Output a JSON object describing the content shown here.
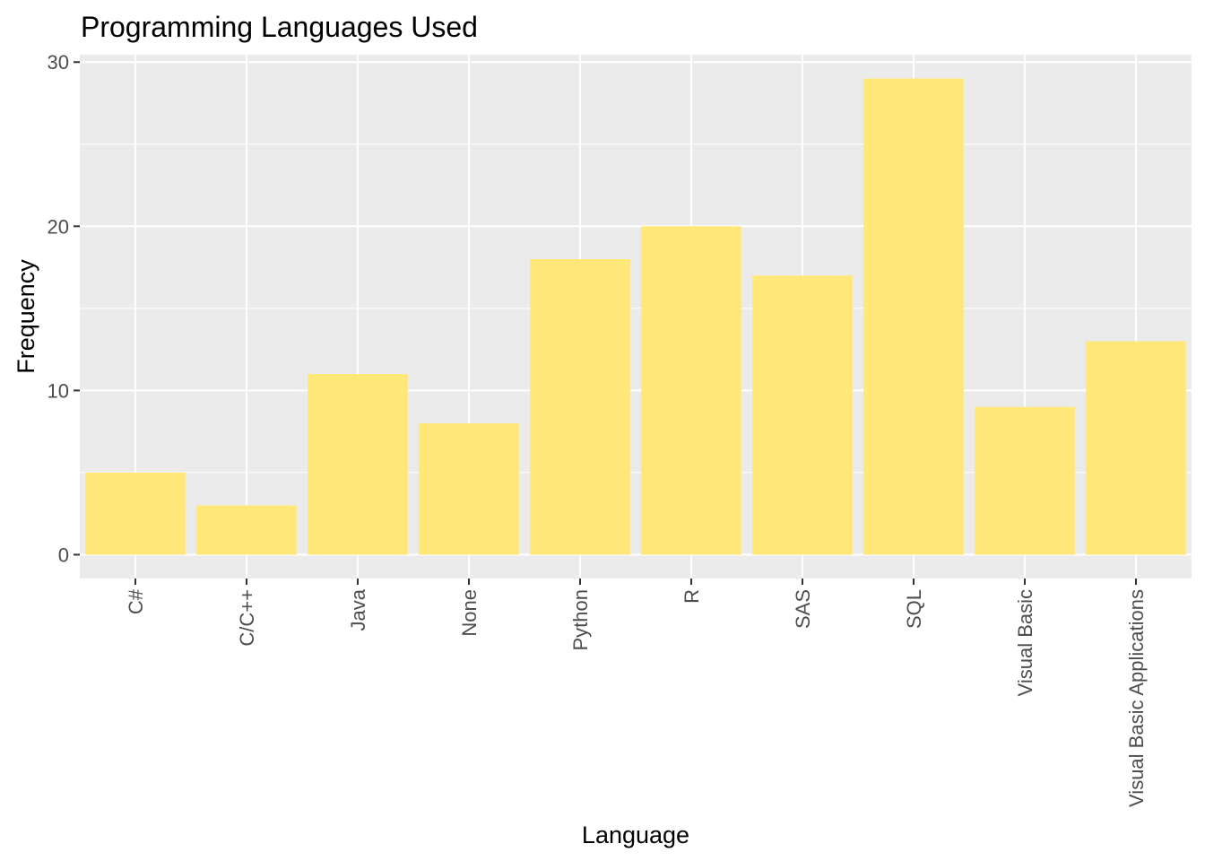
{
  "chart_data": {
    "type": "bar",
    "title": "Programming Languages Used",
    "xlabel": "Language",
    "ylabel": "Frequency",
    "categories": [
      "C#",
      "C/C++",
      "Java",
      "None",
      "Python",
      "R",
      "SAS",
      "SQL",
      "Visual Basic",
      "Visual Basic Applications"
    ],
    "values": [
      5,
      3,
      11,
      8,
      18,
      20,
      17,
      29,
      9,
      13
    ],
    "ylim": [
      -1.45,
      30.45
    ],
    "yticks": [
      0,
      10,
      20,
      30
    ],
    "ytick_labels": [
      "0",
      "10",
      "20",
      "30"
    ],
    "grid": true,
    "legend": "none",
    "colors": {
      "bar": "#ffe878",
      "panel": "#ebebeb",
      "grid": "#ffffff",
      "tick_text": "#4d4d4d",
      "text": "#000000",
      "tick_mark": "#333333"
    }
  }
}
